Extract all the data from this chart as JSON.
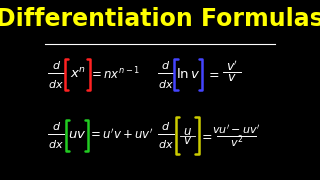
{
  "background_color": "#000000",
  "title": "Differentiation Formulas",
  "title_color": "#FFFF00",
  "title_fontsize": 17,
  "separator_color": "#FFFFFF",
  "formula_color": "#FFFFFF",
  "box1_color": "#FF2222",
  "box2_color": "#4444FF",
  "box3_color": "#22CC22",
  "box4_color": "#CCCC00"
}
